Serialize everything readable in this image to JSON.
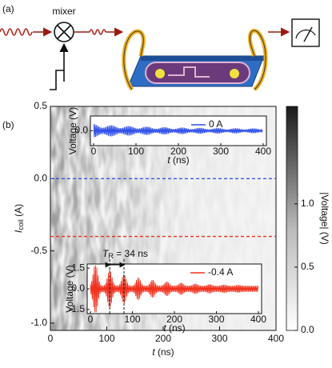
{
  "panel_a": {
    "label": "(a)",
    "mixer_label": "mixer"
  },
  "chart_data": {
    "type": "heatmap",
    "panel_label": "(b)",
    "xlabel": {
      "symbol": "t",
      "unit": "(ns)"
    },
    "ylabel": {
      "symbol": "I",
      "subscript": "coil",
      "unit": "(A)"
    },
    "xlim": [
      0,
      400
    ],
    "xticks": [
      0,
      100,
      200,
      300,
      400
    ],
    "ylim": [
      -1.05,
      0.5
    ],
    "yticks": [
      0.5,
      {
        "value": 0,
        "label": "0.0"
      },
      -0.5,
      {
        "value": -1,
        "label": "-1.0"
      }
    ],
    "colorbar": {
      "label": "|Voltage| (V)",
      "lim": [
        0,
        1.77
      ],
      "ticks": [
        {
          "value": 0,
          "label": "0.0"
        },
        0.5,
        {
          "value": 1,
          "label": "1.0"
        }
      ]
    },
    "lines": [
      {
        "value": 0,
        "color": "#3a55e0"
      },
      {
        "value": -0.4,
        "color": "#e8321e"
      }
    ],
    "insets": [
      {
        "name": "0 A",
        "color": "#2f4fe8",
        "xlim": [
          0,
          400
        ],
        "xticks": [
          0,
          100,
          200,
          300,
          400
        ],
        "ylim": [
          -0.6,
          0.6
        ],
        "yticks": [
          {
            "value": 0,
            "label": "0.0"
          }
        ],
        "ylabel": "Voltage (V)",
        "xlabel": {
          "symbol": "t",
          "unit": "(ns)"
        }
      },
      {
        "name": "-0.4 A",
        "color": "#f2301c",
        "xlim": [
          0,
          400
        ],
        "xticks": [
          0,
          100,
          200,
          300,
          400
        ],
        "ylim": [
          -1.8,
          1.8
        ],
        "yticks": [
          1.5,
          {
            "value": 0,
            "label": "0.0"
          },
          -1.5
        ],
        "ylabel": "Voltage (V)",
        "xlabel": {
          "symbol": "t",
          "unit": "(ns)"
        },
        "annotation": {
          "symbol": "T",
          "subscript": "R",
          "text": "= 34 ns"
        }
      }
    ]
  }
}
